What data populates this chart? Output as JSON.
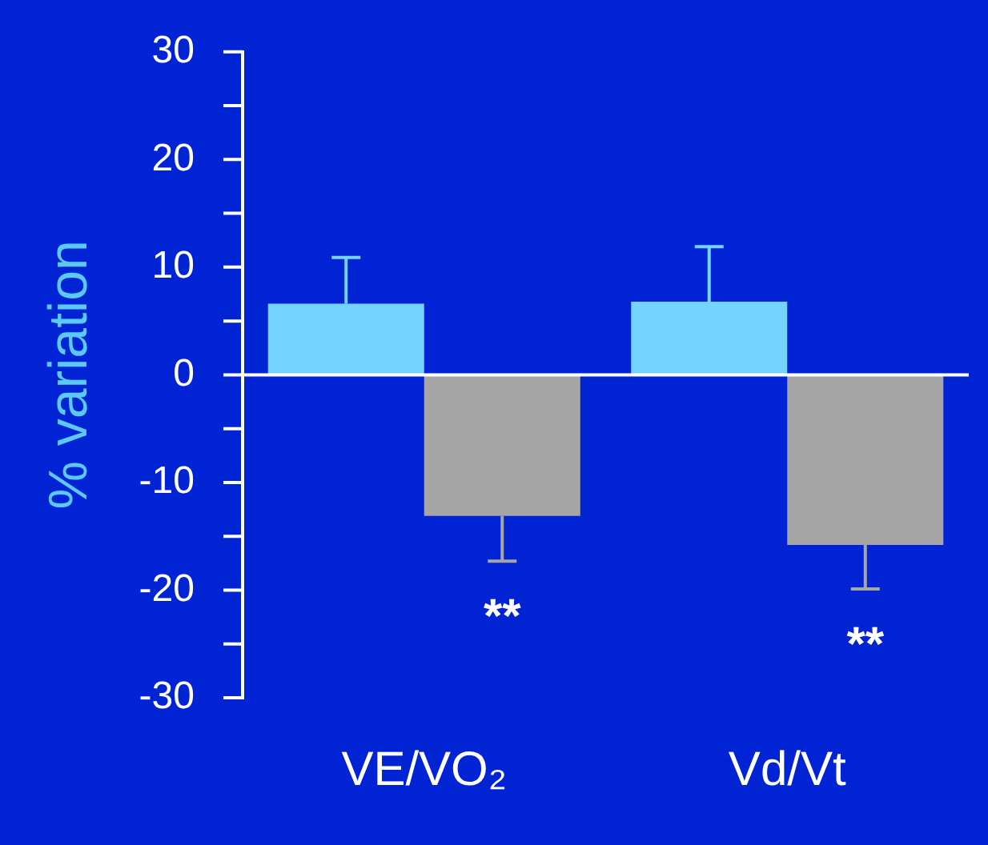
{
  "chart_data": {
    "type": "bar",
    "ylabel": "% variation",
    "categories": [
      "VE/VO₂",
      "Vd/Vt"
    ],
    "series": [
      {
        "color": "#74d3ff",
        "values": [
          6.6,
          6.8
        ],
        "errors": [
          [
            6.6,
            10.9
          ],
          [
            6.8,
            11.9
          ]
        ]
      },
      {
        "color": "#a6a6a6",
        "values": [
          -13.1,
          -15.8
        ],
        "errors": [
          [
            -17.3,
            -13.1
          ],
          [
            -19.9,
            -15.8
          ]
        ]
      }
    ],
    "ylim": [
      -30,
      30
    ],
    "yticks": [
      -30,
      {
        "value": -25,
        "label": null
      },
      -20,
      {
        "value": -15,
        "label": null
      },
      -10,
      {
        "value": -5,
        "label": null
      },
      0,
      {
        "value": 5,
        "label": null
      },
      10,
      {
        "value": 15,
        "label": null
      },
      20,
      {
        "value": 25,
        "label": null
      },
      30
    ],
    "annotations": [
      "**",
      "**"
    ],
    "legend": false
  }
}
